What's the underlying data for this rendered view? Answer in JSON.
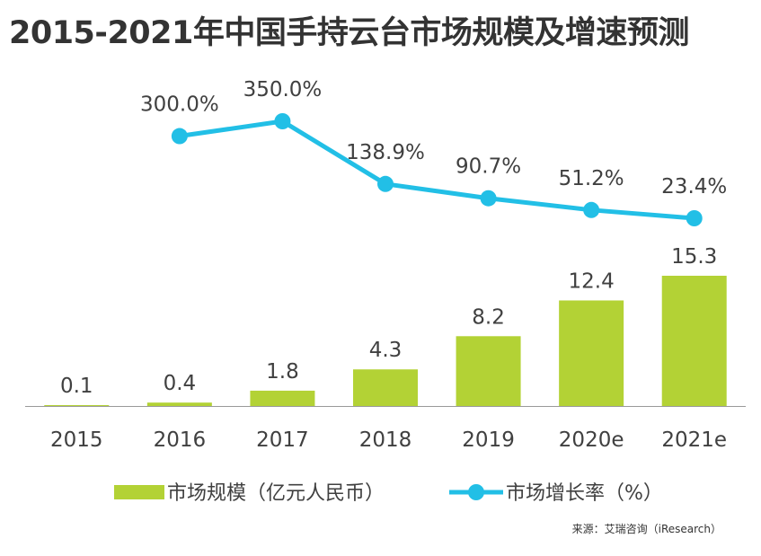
{
  "title": "2015-2021年中国手持云台市场规模及增速预测",
  "source": "来源：艾瑞咨询（iResearch）",
  "colors": {
    "bar": "#b3d235",
    "line": "#22bfe6",
    "text": "#404040",
    "axis": "#999999"
  },
  "chart_data": {
    "type": "bar+line",
    "categories": [
      "2015",
      "2016",
      "2017",
      "2018",
      "2019",
      "2020e",
      "2021e"
    ],
    "series": [
      {
        "name": "市场规模（亿元人民币）",
        "type": "bar",
        "values": [
          0.1,
          0.4,
          1.8,
          4.3,
          8.2,
          12.4,
          15.3
        ],
        "labels": [
          "0.1",
          "0.4",
          "1.8",
          "4.3",
          "8.2",
          "12.4",
          "15.3"
        ]
      },
      {
        "name": "市场增长率（%）",
        "type": "line",
        "values": [
          null,
          300.0,
          350.0,
          138.9,
          90.7,
          51.2,
          23.4
        ],
        "labels": [
          "",
          "300.0%",
          "350.0%",
          "138.9%",
          "90.7%",
          "51.2%",
          "23.4%"
        ]
      }
    ],
    "legend_position": "bottom"
  }
}
